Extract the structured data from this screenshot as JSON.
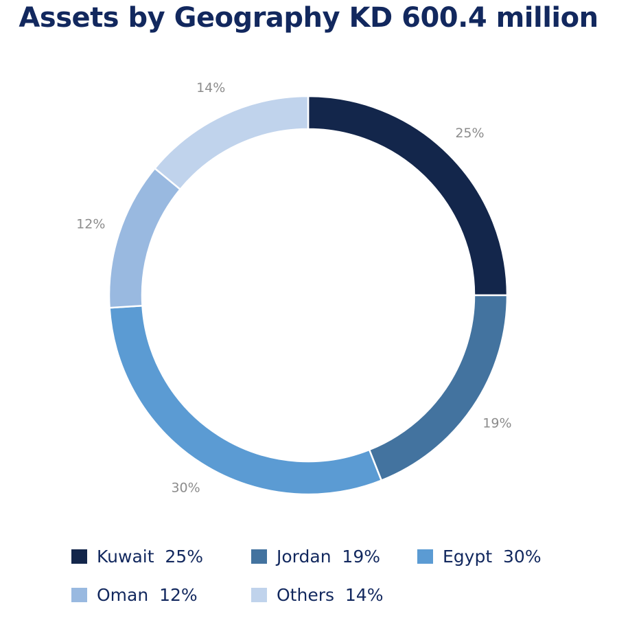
{
  "title": "Assets by Geography KD 600.4 million",
  "chart_data": {
    "type": "pie",
    "style": "donut",
    "title": "Assets by Geography KD 600.4 million",
    "unit": "%",
    "start_angle_deg": 0,
    "direction": "clockwise",
    "slices": [
      {
        "name": "Kuwait",
        "value": 25,
        "label": "25%",
        "legend": "Kuwait  25%",
        "color": "#13264b"
      },
      {
        "name": "Jordan",
        "value": 19,
        "label": "19%",
        "legend": "Jordan  19%",
        "color": "#43739f"
      },
      {
        "name": "Egypt",
        "value": 30,
        "label": "30%",
        "legend": "Egypt  30%",
        "color": "#5b9bd3"
      },
      {
        "name": "Oman",
        "value": 12,
        "label": "12%",
        "legend": "Oman  12%",
        "color": "#99b9e0"
      },
      {
        "name": "Others",
        "value": 14,
        "label": "14%",
        "legend": "Others  14%",
        "color": "#c0d3ec"
      }
    ],
    "legend_position": "bottom"
  }
}
